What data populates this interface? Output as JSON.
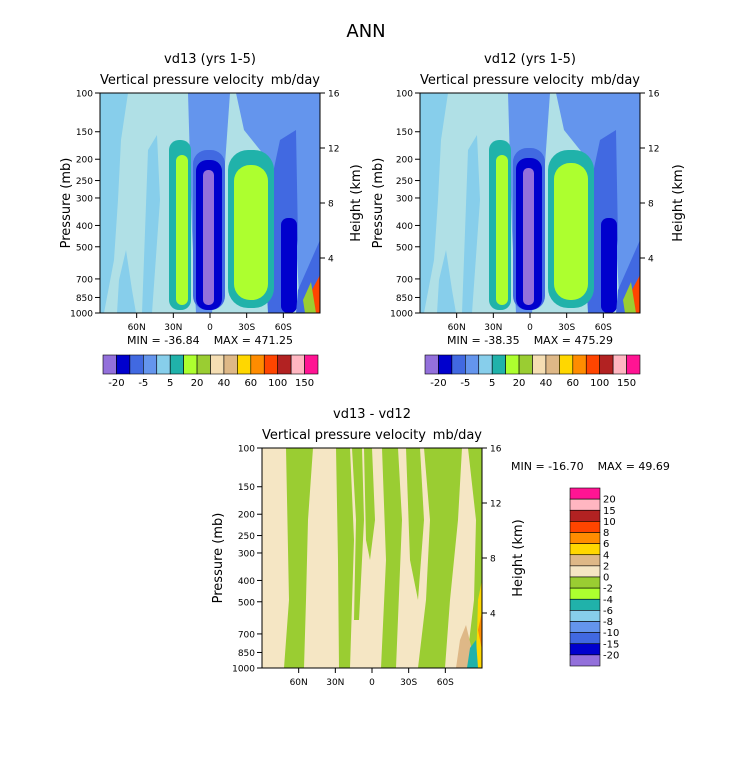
{
  "figure": {
    "title": "ANN"
  },
  "chart_data": [
    {
      "type": "heatmap",
      "title": "vd13 (yrs 1-5)",
      "subtitle_left": "Vertical pressure velocity",
      "subtitle_right": "mb/day",
      "ylabel": "Pressure (mb)",
      "ylabel_right": "Height (km)",
      "y_ticks": [
        "100",
        "150",
        "200",
        "250",
        "300",
        "400",
        "500",
        "700",
        "850",
        "1000"
      ],
      "y_right_ticks": [
        "16",
        "12",
        "8",
        "4"
      ],
      "x_ticks": [
        "60N",
        "30N",
        "0",
        "30S",
        "60S"
      ],
      "min_label": "MIN = -36.84",
      "max_label": "MAX = 471.25",
      "min": -36.84,
      "max": 471.25,
      "colorbar_levels": [
        "-20",
        "-5",
        "5",
        "20",
        "40",
        "60",
        "100",
        "150"
      ]
    },
    {
      "type": "heatmap",
      "title": "vd12 (yrs 1-5)",
      "subtitle_left": "Vertical pressure velocity",
      "subtitle_right": "mb/day",
      "ylabel": "Pressure (mb)",
      "ylabel_right": "Height (km)",
      "y_ticks": [
        "100",
        "150",
        "200",
        "250",
        "300",
        "400",
        "500",
        "700",
        "850",
        "1000"
      ],
      "y_right_ticks": [
        "16",
        "12",
        "8",
        "4"
      ],
      "x_ticks": [
        "60N",
        "30N",
        "0",
        "30S",
        "60S"
      ],
      "min_label": "MIN = -38.35",
      "max_label": "MAX = 475.29",
      "min": -38.35,
      "max": 475.29,
      "colorbar_levels": [
        "-20",
        "-5",
        "5",
        "20",
        "40",
        "60",
        "100",
        "150"
      ]
    },
    {
      "type": "heatmap",
      "title": "vd13 - vd12",
      "subtitle_left": "Vertical pressure velocity",
      "subtitle_right": "mb/day",
      "ylabel": "Pressure (mb)",
      "ylabel_right": "Height (km)",
      "y_ticks": [
        "100",
        "150",
        "200",
        "250",
        "300",
        "400",
        "500",
        "700",
        "850",
        "1000"
      ],
      "y_right_ticks": [
        "16",
        "12",
        "8",
        "4"
      ],
      "x_ticks": [
        "60N",
        "30N",
        "0",
        "30S",
        "60S"
      ],
      "min_label": "MIN = -16.70",
      "max_label": "MAX = 49.69",
      "min": -16.7,
      "max": 49.69,
      "colorbar_levels": [
        "20",
        "15",
        "10",
        "8",
        "6",
        "4",
        "2",
        "0",
        "-2",
        "-4",
        "-6",
        "-8",
        "-10",
        "-15",
        "-20"
      ]
    }
  ],
  "colors": {
    "main_scale": [
      "#9370DB",
      "#0000CD",
      "#4169E1",
      "#6495ED",
      "#87CEEB",
      "#20B2AA",
      "#ADFF2F",
      "#9ACD32",
      "#F5DEB3",
      "#DEB887",
      "#FFD700",
      "#FF8C00",
      "#FF4500",
      "#B22222",
      "#FFB6C1",
      "#FF1493"
    ],
    "diff_scale": [
      "#FF1493",
      "#FFB6C1",
      "#B22222",
      "#FF4500",
      "#FF8C00",
      "#FFD700",
      "#DEB887",
      "#F5E6C4",
      "#9ACD32",
      "#ADFF2F",
      "#20B2AA",
      "#87CEEB",
      "#6495ED",
      "#4169E1",
      "#0000CD",
      "#9370DB"
    ]
  }
}
